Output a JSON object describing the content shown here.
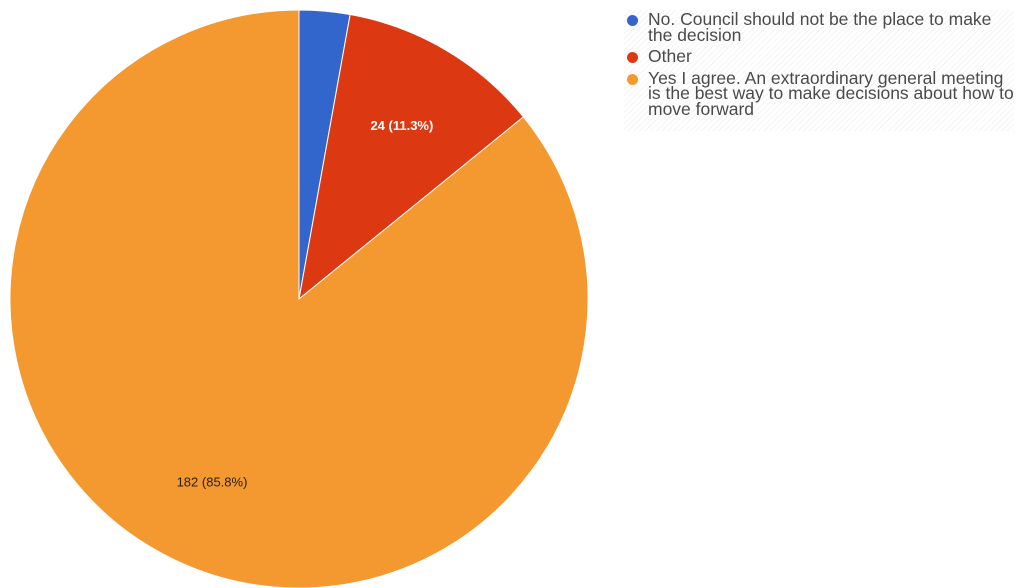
{
  "chart_data": {
    "type": "pie",
    "slices": [
      {
        "label": "No. Council should not be the place to make the decision",
        "value": 6,
        "color": "#3366cc"
      },
      {
        "label": "Other",
        "value": 24,
        "color": "#dc3912",
        "data_label": "24 (11.3%)"
      },
      {
        "label": "Yes I agree. An extraordinary general meeting is the best way to make decisions about how to move forward",
        "value": 182,
        "color": "#f4992f",
        "data_label": "182 (85.8%)"
      }
    ],
    "legend_position": "right"
  },
  "legend": {
    "items": [
      {
        "label": "No. Council should not be the place to make the decision",
        "color": "#3366cc"
      },
      {
        "label": "Other",
        "color": "#dc3912"
      },
      {
        "label": "Yes I agree. An extraordinary general meeting is the best way to make decisions about how to move forward",
        "color": "#f4992f"
      }
    ]
  }
}
